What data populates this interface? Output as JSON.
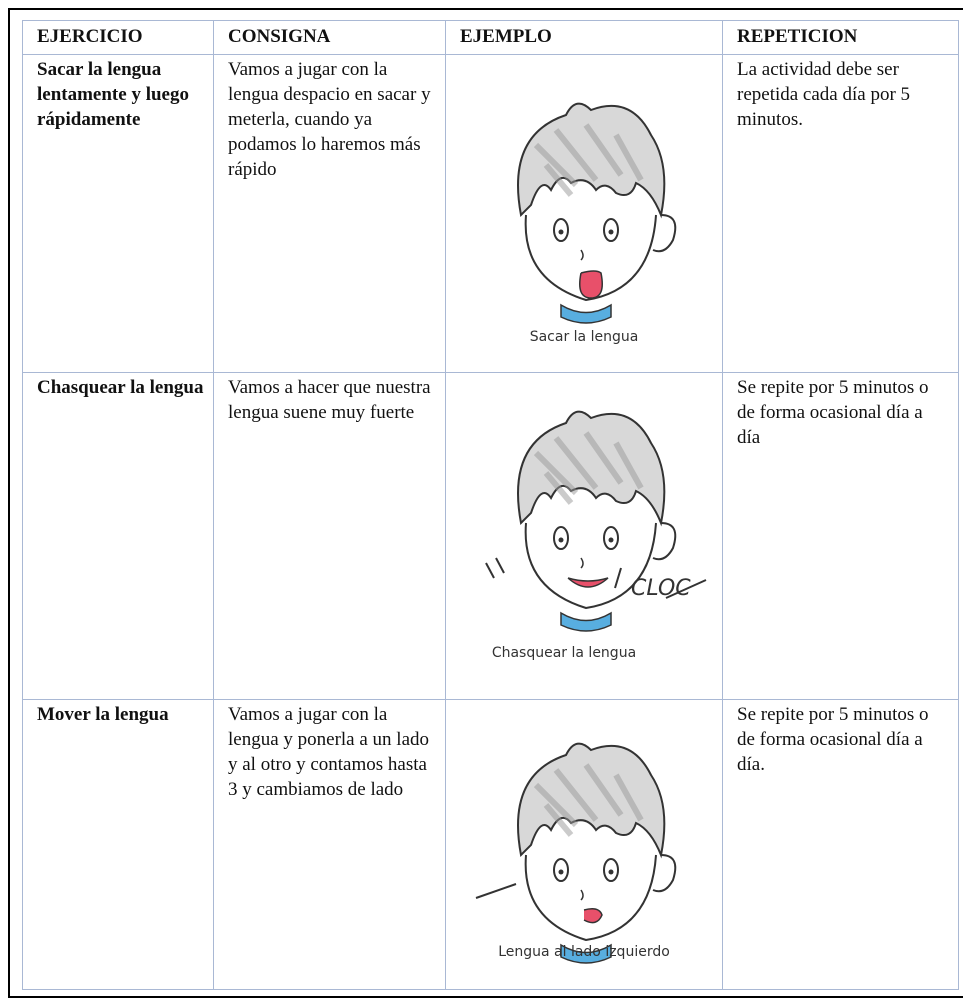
{
  "table": {
    "headers": [
      "EJERCICIO",
      "CONSIGNA",
      "EJEMPLO",
      "REPETICION"
    ],
    "rows": [
      [
        "Sacar la lengua lentamente y luego rápidamente",
        "Vamos a jugar con la lengua despacio en sacar y meterla, cuando ya podamos lo haremos más rápido",
        "Sacar la lengua",
        "La actividad debe ser repetida cada día por 5 minutos."
      ],
      [
        "Chasquear la lengua",
        "Vamos a hacer que nuestra lengua suene muy fuerte",
        "Chasquear la lengua",
        "Se repite por 5 minutos o de forma ocasional día a día"
      ],
      [
        "Mover la lengua",
        "Vamos a jugar con la lengua y ponerla a un lado y al otro y contamos hasta 3 y cambiamos de lado",
        "Lengua al lado izquierdo",
        "Se repite por 5 minutos o de forma ocasional día a día."
      ]
    ]
  }
}
